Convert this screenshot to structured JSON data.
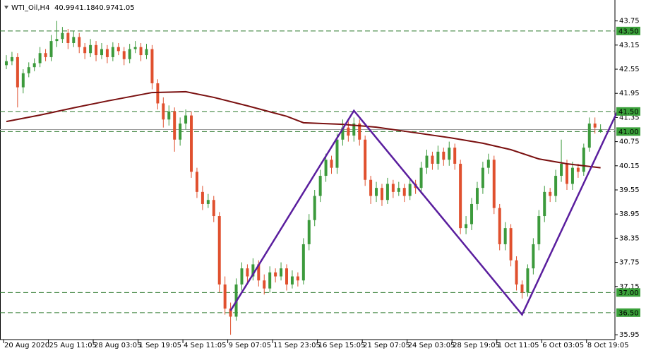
{
  "chart_data": {
    "type": "candlestick",
    "title": "WTI_Oil,H4",
    "bull_color": "#3c9a3c",
    "bear_color": "#e0502e",
    "series": {
      "open": [
        42.65,
        42.75,
        42.85,
        42.1,
        42.45,
        42.6,
        42.7,
        42.95,
        42.85,
        43.25,
        43.3,
        43.45,
        43.2,
        43.35,
        43.1,
        42.95,
        43.15,
        42.9,
        43.05,
        42.85,
        43.1,
        43.0,
        42.8,
        43.05,
        43.1,
        42.9,
        43.05,
        42.2,
        41.7,
        41.3,
        41.5,
        40.8,
        41.2,
        41.4,
        40.0,
        39.5,
        39.2,
        39.3,
        38.9,
        37.2,
        36.6,
        36.4,
        37.2,
        37.6,
        37.4,
        37.7,
        37.3,
        37.1,
        37.5,
        37.4,
        37.6,
        37.2,
        37.4,
        37.3,
        38.2,
        38.8,
        39.4,
        39.9,
        40.3,
        40.1,
        40.8,
        41.1,
        40.9,
        41.2,
        40.8,
        39.8,
        39.4,
        39.6,
        39.3,
        39.7,
        39.5,
        39.6,
        39.4,
        39.7,
        39.6,
        40.1,
        40.4,
        40.2,
        40.5,
        40.3,
        40.6,
        40.2,
        38.6,
        38.7,
        39.2,
        39.6,
        40.1,
        40.3,
        39.1,
        38.2,
        38.6,
        37.8,
        37.2,
        37.0,
        37.6,
        38.2,
        38.9,
        39.5,
        39.4,
        39.9,
        40.2,
        39.7,
        40.1,
        40.0,
        40.6,
        41.2,
        40.99
      ],
      "high": [
        42.9,
        42.98,
        42.95,
        42.55,
        42.72,
        42.82,
        43.1,
        43.05,
        43.4,
        43.75,
        43.6,
        43.55,
        43.5,
        43.45,
        43.2,
        43.3,
        43.25,
        43.2,
        43.15,
        43.22,
        43.2,
        43.1,
        43.18,
        43.25,
        43.2,
        43.18,
        43.15,
        42.3,
        41.85,
        41.65,
        41.6,
        41.35,
        41.55,
        41.5,
        40.1,
        39.65,
        39.45,
        39.4,
        39.0,
        37.4,
        36.75,
        37.35,
        37.75,
        37.7,
        37.85,
        37.8,
        37.45,
        37.65,
        37.6,
        37.75,
        37.7,
        37.55,
        37.5,
        38.35,
        38.95,
        39.55,
        40.05,
        40.45,
        40.4,
        40.95,
        41.3,
        41.25,
        41.35,
        41.3,
        40.9,
        39.9,
        39.75,
        39.7,
        39.85,
        39.8,
        39.75,
        39.7,
        39.85,
        39.8,
        40.25,
        40.55,
        40.5,
        40.65,
        40.6,
        40.75,
        40.7,
        40.3,
        38.9,
        39.35,
        39.75,
        40.25,
        40.45,
        40.4,
        39.2,
        38.75,
        38.7,
        37.9,
        37.3,
        37.7,
        38.35,
        39.05,
        39.65,
        39.6,
        40.05,
        40.8,
        40.3,
        40.25,
        40.2,
        40.7,
        41.35,
        41.35,
        41.18
      ],
      "low": [
        42.55,
        42.65,
        41.6,
        41.95,
        42.35,
        42.5,
        42.6,
        42.75,
        42.75,
        43.1,
        43.2,
        43.05,
        43.1,
        42.95,
        42.8,
        42.85,
        42.75,
        42.8,
        42.7,
        42.75,
        42.9,
        42.65,
        42.7,
        42.95,
        42.75,
        42.8,
        42.05,
        41.55,
        41.1,
        41.15,
        40.5,
        40.65,
        41.05,
        39.85,
        39.35,
        39.05,
        39.1,
        38.75,
        37.0,
        36.45,
        35.95,
        36.3,
        37.05,
        37.25,
        37.3,
        37.15,
        36.95,
        37.0,
        37.25,
        37.3,
        37.05,
        37.1,
        37.15,
        37.2,
        38.05,
        38.65,
        39.25,
        39.75,
        39.95,
        39.95,
        40.65,
        40.75,
        40.75,
        40.65,
        39.65,
        39.2,
        39.25,
        39.15,
        39.2,
        39.35,
        39.4,
        39.25,
        39.3,
        39.45,
        39.45,
        39.95,
        40.05,
        40.05,
        40.15,
        40.15,
        40.05,
        38.45,
        38.45,
        38.55,
        39.05,
        39.45,
        39.95,
        38.95,
        38.05,
        38.05,
        37.65,
        37.05,
        36.85,
        36.9,
        37.45,
        38.05,
        38.75,
        39.25,
        39.25,
        39.75,
        39.55,
        39.55,
        39.85,
        39.9,
        40.5,
        40.95,
        40.97
      ],
      "close": [
        42.75,
        42.85,
        42.1,
        42.45,
        42.6,
        42.7,
        42.95,
        42.85,
        43.25,
        43.3,
        43.45,
        43.2,
        43.35,
        43.1,
        42.95,
        43.15,
        42.9,
        43.05,
        42.85,
        43.1,
        43.0,
        42.8,
        43.05,
        43.1,
        42.9,
        43.05,
        42.2,
        41.7,
        41.3,
        41.5,
        40.8,
        41.2,
        41.4,
        40.0,
        39.5,
        39.2,
        39.3,
        38.9,
        37.2,
        36.6,
        36.4,
        37.2,
        37.6,
        37.4,
        37.7,
        37.3,
        37.1,
        37.5,
        37.4,
        37.6,
        37.2,
        37.4,
        37.3,
        38.2,
        38.8,
        39.4,
        39.9,
        40.3,
        40.1,
        40.8,
        41.1,
        40.9,
        41.2,
        40.8,
        39.8,
        39.4,
        39.6,
        39.3,
        39.7,
        39.5,
        39.6,
        39.4,
        39.7,
        39.6,
        40.1,
        40.4,
        40.2,
        40.5,
        40.3,
        40.6,
        40.2,
        38.6,
        38.7,
        39.2,
        39.6,
        40.1,
        40.3,
        39.1,
        38.2,
        38.6,
        37.8,
        37.2,
        37.0,
        37.6,
        38.2,
        38.9,
        39.5,
        39.4,
        39.9,
        40.2,
        39.7,
        40.1,
        40.0,
        40.6,
        41.2,
        41.1,
        41.05
      ]
    },
    "ma": {
      "color": "#7a1010",
      "x": [
        0,
        6,
        12,
        18,
        26,
        32,
        37,
        43,
        50,
        53,
        60,
        66,
        72,
        79,
        85,
        90,
        95,
        100,
        106
      ],
      "values": [
        41.25,
        41.41,
        41.59,
        41.76,
        41.97,
        41.99,
        41.85,
        41.64,
        41.38,
        41.22,
        41.18,
        41.11,
        40.99,
        40.85,
        40.71,
        40.55,
        40.32,
        40.2,
        40.1
      ]
    },
    "pattern": {
      "color": "#5a1e9e",
      "x": [
        40,
        62,
        92,
        109
      ],
      "values": [
        36.55,
        41.52,
        36.45,
        41.5
      ]
    },
    "levels": [
      {
        "value": 43.5,
        "label": "43.50"
      },
      {
        "value": 41.5,
        "label": "41.50"
      },
      {
        "value": 41,
        "label": "41.00"
      },
      {
        "value": 37,
        "label": "37.00"
      },
      {
        "value": 36.5,
        "label": "36.50"
      }
    ],
    "level_color": "#2f7a2f",
    "ylim": [
      35.83,
      44.27
    ],
    "yticks": [
      35.95,
      37.15,
      37.75,
      38.35,
      38.95,
      39.55,
      40.15,
      40.75,
      41.35,
      41.95,
      42.55,
      43.15,
      43.75
    ],
    "xticks": [
      {
        "value": 0,
        "label": "20 Aug 2020"
      },
      {
        "value": 8,
        "label": "25 Aug 11:05"
      },
      {
        "value": 16,
        "label": "28 Aug 03:05"
      },
      {
        "value": 24,
        "label": "1 Sep 19:05"
      },
      {
        "value": 32,
        "label": "4 Sep 11:05"
      },
      {
        "value": 40,
        "label": "9 Sep 07:05"
      },
      {
        "value": 48,
        "label": "11 Sep 23:05"
      },
      {
        "value": 56,
        "label": "16 Sep 15:05"
      },
      {
        "value": 64,
        "label": "21 Sep 07:05"
      },
      {
        "value": 72,
        "label": "24 Sep 03:05"
      },
      {
        "value": 80,
        "label": "28 Sep 19:05"
      },
      {
        "value": 88,
        "label": "1 Oct 11:05"
      },
      {
        "value": 96,
        "label": "6 Oct 03:05"
      },
      {
        "value": 104,
        "label": "8 Oct 19:05"
      }
    ]
  }
}
